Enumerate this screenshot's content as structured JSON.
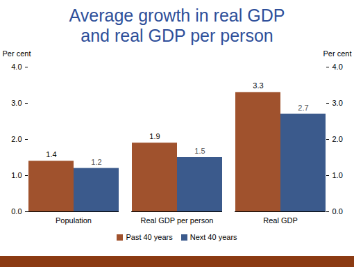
{
  "chart_data": {
    "type": "bar",
    "title": [
      "Average growth in real GDP",
      "and real GDP per person"
    ],
    "y_label": "Per cent",
    "y2_label": "Per cent",
    "categories": [
      "Population",
      "Real GDP per person",
      "Real GDP"
    ],
    "series": [
      {
        "name": "Past 40 years",
        "color": "#A0522D",
        "values": [
          1.4,
          1.9,
          3.3
        ]
      },
      {
        "name": "Next 40 years",
        "color": "#3B5A8C",
        "values": [
          1.2,
          1.5,
          2.7
        ]
      }
    ],
    "ylim": [
      0,
      4
    ],
    "yticks": [
      0,
      1,
      2,
      3,
      4
    ],
    "y2lim": [
      0,
      4
    ],
    "y2ticks": [
      0,
      1,
      2,
      3,
      4
    ],
    "grid": false,
    "legend": "bottom",
    "data_labels": true
  }
}
